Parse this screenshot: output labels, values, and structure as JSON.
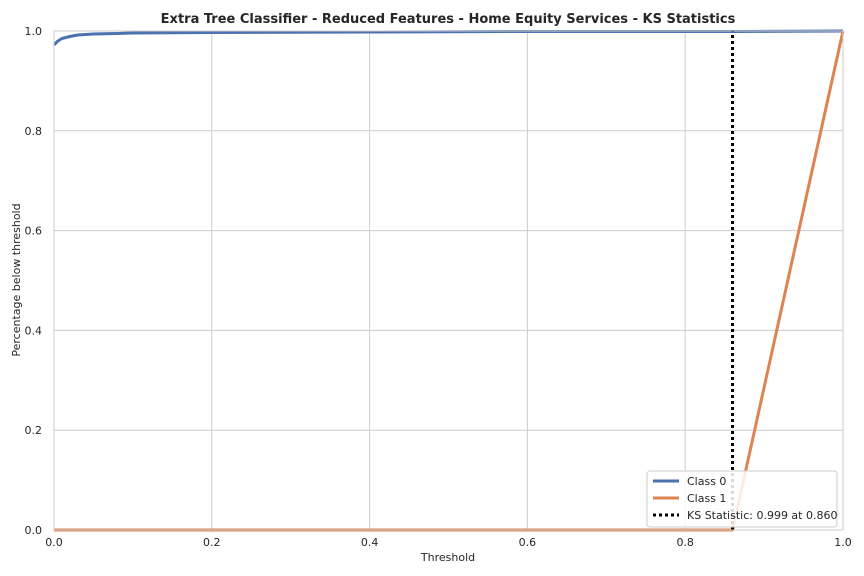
{
  "chart_data": {
    "type": "line",
    "title": "Extra Tree Classifier - Reduced Features - Home Equity Services - KS Statistics",
    "xlabel": "Threshold",
    "ylabel": "Percentage below threshold",
    "xlim": [
      0,
      1
    ],
    "ylim": [
      0,
      1
    ],
    "x_ticks": [
      "0.0",
      "0.2",
      "0.4",
      "0.6",
      "0.8",
      "1.0"
    ],
    "y_ticks": [
      "0.0",
      "0.2",
      "0.4",
      "0.6",
      "0.8",
      "1.0"
    ],
    "grid": true,
    "legend_position": "bottom-right",
    "series": [
      {
        "name": "Class 0",
        "color": "#4c72b0",
        "x": [
          0.0,
          0.005,
          0.01,
          0.02,
          0.03,
          0.05,
          0.08,
          0.1,
          0.2,
          0.4,
          0.6,
          0.8,
          0.86,
          1.0
        ],
        "y": [
          0.972,
          0.98,
          0.985,
          0.989,
          0.992,
          0.994,
          0.995,
          0.996,
          0.997,
          0.998,
          0.999,
          0.999,
          0.999,
          1.0
        ]
      },
      {
        "name": "Class 1",
        "color": "#dd8452",
        "x": [
          0.0,
          0.86,
          1.0
        ],
        "y": [
          0.0,
          0.0,
          1.0
        ]
      }
    ],
    "ks_line": {
      "label": "KS Statistic: 0.999 at 0.860",
      "x": 0.86,
      "y_range": [
        0.0,
        0.999
      ],
      "color": "#000000"
    }
  }
}
